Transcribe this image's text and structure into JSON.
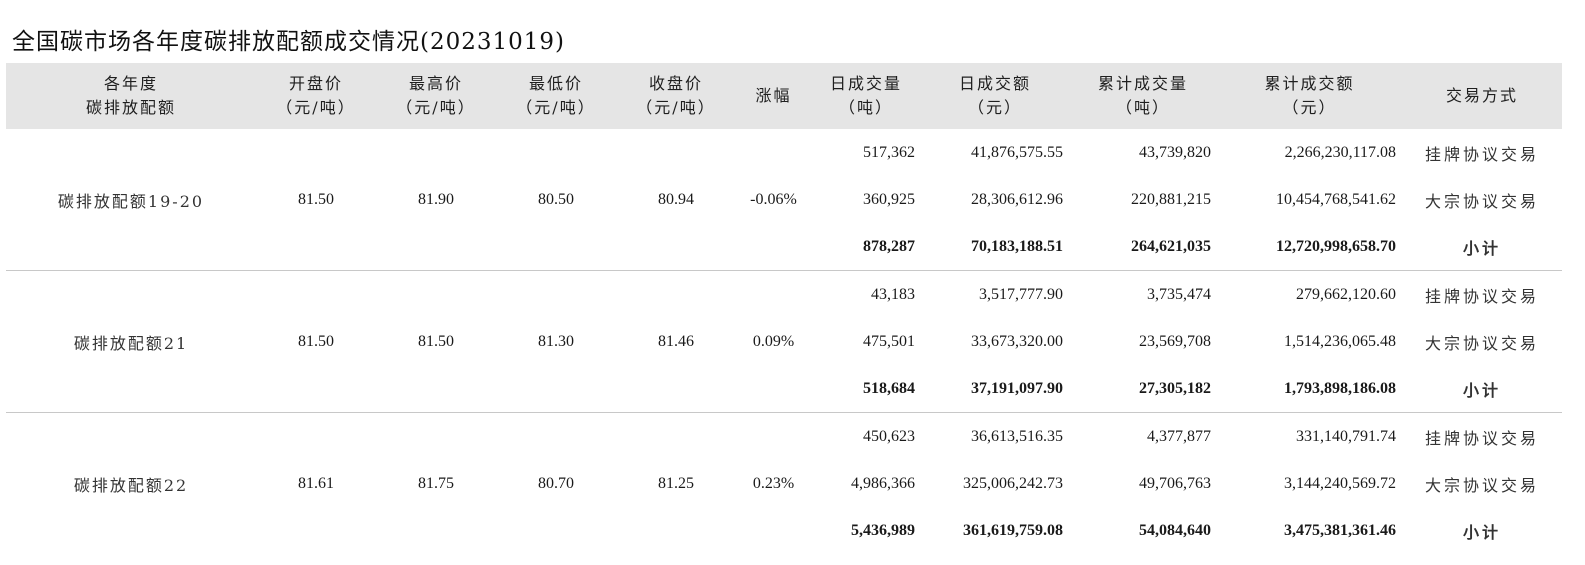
{
  "title": "全国碳市场各年度碳排放配额成交情况(20231019)",
  "headers": [
    [
      "各年度",
      "碳排放配额"
    ],
    [
      "开盘价",
      "（元/吨）"
    ],
    [
      "最高价",
      "（元/吨）"
    ],
    [
      "最低价",
      "（元/吨）"
    ],
    [
      "收盘价",
      "（元/吨）"
    ],
    [
      "涨幅"
    ],
    [
      "日成交量",
      "（吨）"
    ],
    [
      "日成交额",
      "（元）"
    ],
    [
      "累计成交量",
      "（吨）"
    ],
    [
      "累计成交额",
      "（元）"
    ],
    [
      "交易方式"
    ]
  ],
  "groups": [
    {
      "name": "碳排放配额19-20",
      "open": "81.50",
      "high": "81.90",
      "low": "80.50",
      "close": "80.94",
      "change": "-0.06%",
      "rows": [
        {
          "daily_vol": "517,362",
          "daily_amt": "41,876,575.55",
          "cum_vol": "43,739,820",
          "cum_amt": "2,266,230,117.08",
          "mode": "挂牌协议交易"
        },
        {
          "daily_vol": "360,925",
          "daily_amt": "28,306,612.96",
          "cum_vol": "220,881,215",
          "cum_amt": "10,454,768,541.62",
          "mode": "大宗协议交易"
        },
        {
          "daily_vol": "878,287",
          "daily_amt": "70,183,188.51",
          "cum_vol": "264,621,035",
          "cum_amt": "12,720,998,658.70",
          "mode": "小计"
        }
      ]
    },
    {
      "name": "碳排放配额21",
      "open": "81.50",
      "high": "81.50",
      "low": "81.30",
      "close": "81.46",
      "change": "0.09%",
      "rows": [
        {
          "daily_vol": "43,183",
          "daily_amt": "3,517,777.90",
          "cum_vol": "3,735,474",
          "cum_amt": "279,662,120.60",
          "mode": "挂牌协议交易"
        },
        {
          "daily_vol": "475,501",
          "daily_amt": "33,673,320.00",
          "cum_vol": "23,569,708",
          "cum_amt": "1,514,236,065.48",
          "mode": "大宗协议交易"
        },
        {
          "daily_vol": "518,684",
          "daily_amt": "37,191,097.90",
          "cum_vol": "27,305,182",
          "cum_amt": "1,793,898,186.08",
          "mode": "小计"
        }
      ]
    },
    {
      "name": "碳排放配额22",
      "open": "81.61",
      "high": "81.75",
      "low": "80.70",
      "close": "81.25",
      "change": "0.23%",
      "rows": [
        {
          "daily_vol": "450,623",
          "daily_amt": "36,613,516.35",
          "cum_vol": "4,377,877",
          "cum_amt": "331,140,791.74",
          "mode": "挂牌协议交易"
        },
        {
          "daily_vol": "4,986,366",
          "daily_amt": "325,006,242.73",
          "cum_vol": "49,706,763",
          "cum_amt": "3,144,240,569.72",
          "mode": "大宗协议交易"
        },
        {
          "daily_vol": "5,436,989",
          "daily_amt": "361,619,759.08",
          "cum_vol": "54,084,640",
          "cum_amt": "3,475,381,361.46",
          "mode": "小计"
        }
      ]
    }
  ]
}
